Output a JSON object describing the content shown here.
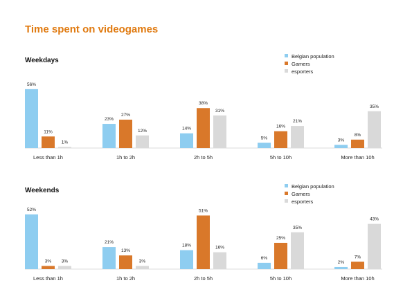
{
  "title": "Time spent on videogames",
  "colors": {
    "title": "#e07a10",
    "belgian": "#8ecdf0",
    "gamers": "#d9782a",
    "esporters": "#d9d9d9"
  },
  "chart_data": [
    {
      "type": "bar",
      "title": "Weekdays",
      "categories": [
        "Less than 1h",
        "1h to 2h",
        "2h to 5h",
        "5h to 10h",
        "More than 10h"
      ],
      "series": [
        {
          "name": "Belgian population",
          "values": [
            56,
            23,
            14,
            5,
            3
          ]
        },
        {
          "name": "Gamers",
          "values": [
            11,
            27,
            38,
            16,
            8
          ]
        },
        {
          "name": "esporters",
          "values": [
            1,
            12,
            31,
            21,
            35
          ]
        }
      ],
      "unit": "%",
      "legend": "top-right",
      "grid": false
    },
    {
      "type": "bar",
      "title": "Weekends",
      "categories": [
        "Less than 1h",
        "1h to 2h",
        "2h to 5h",
        "5h to 10h",
        "More than 10h"
      ],
      "series": [
        {
          "name": "Belgian population",
          "values": [
            52,
            21,
            18,
            6,
            2
          ]
        },
        {
          "name": "Gamers",
          "values": [
            3,
            13,
            51,
            25,
            7
          ]
        },
        {
          "name": "esporters",
          "values": [
            3,
            3,
            16,
            35,
            43
          ]
        }
      ],
      "unit": "%",
      "legend": "top-right",
      "grid": false
    }
  ]
}
